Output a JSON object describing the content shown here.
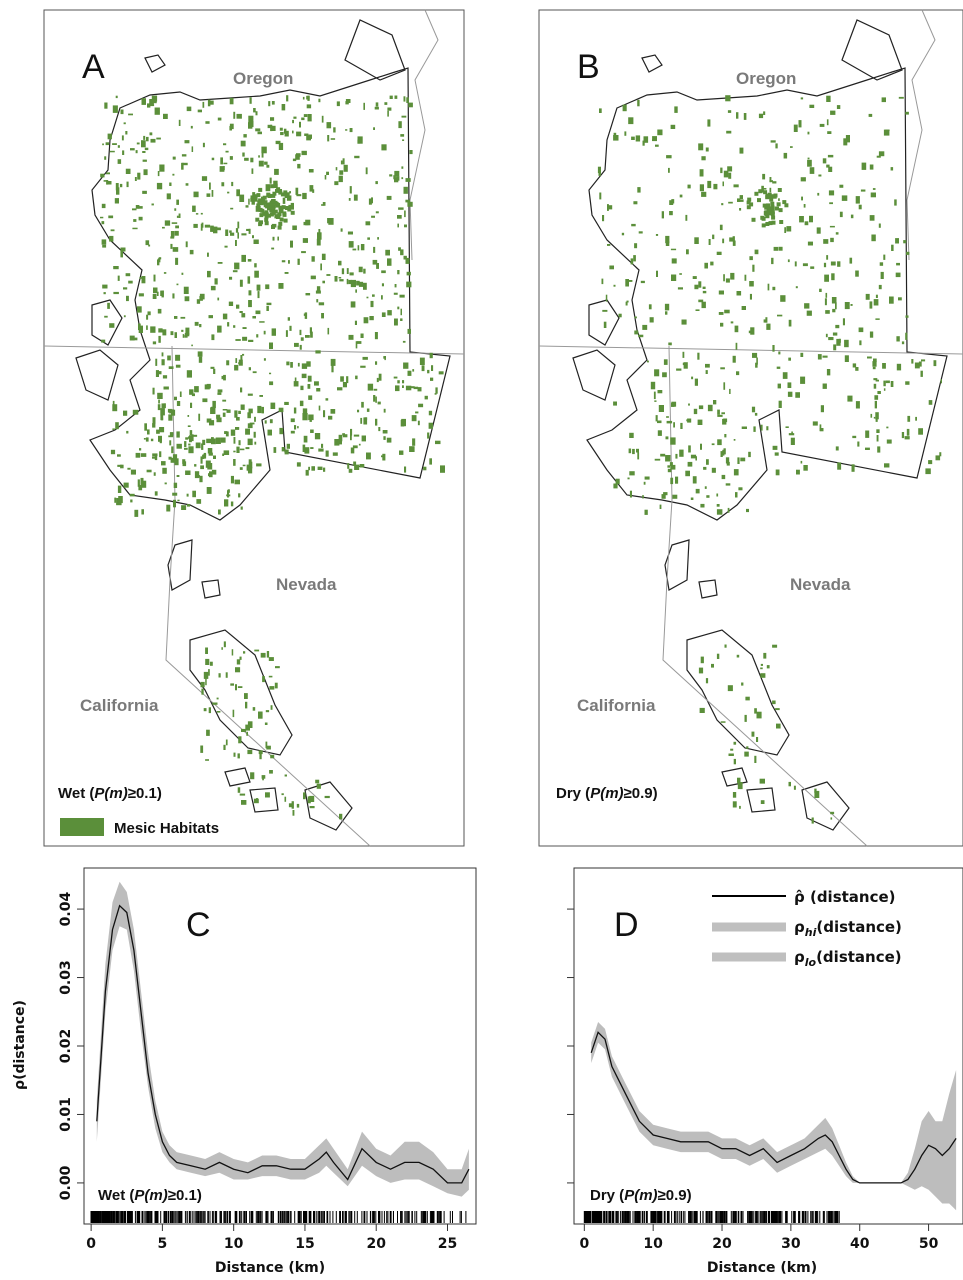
{
  "maps": [
    {
      "panel_label": "A",
      "state_labels": [
        "Oregon",
        "Nevada",
        "California"
      ],
      "caption": "Wet (P(m)≥0.1)",
      "caption_prefix": "Wet (",
      "caption_italic": "P(m)",
      "caption_suffix": "≥0.1)",
      "legend_label": "Mesic Habitats",
      "habitat_color": "#5b8f3a",
      "habitat_density": 1.0
    },
    {
      "panel_label": "B",
      "state_labels": [
        "Oregon",
        "Nevada",
        "California"
      ],
      "caption": "Dry (P(m)≥0.9)",
      "caption_prefix": "Dry (",
      "caption_italic": "P(m)",
      "caption_suffix": "≥0.9)",
      "habitat_color": "#5b8f3a",
      "habitat_density": 0.55
    }
  ],
  "chart_data": [
    {
      "type": "line",
      "panel_label": "C",
      "ylabel": "ρ(distance)",
      "xlabel": "Distance (km)",
      "xlim": [
        -0.5,
        27
      ],
      "ylim": [
        -0.006,
        0.046
      ],
      "xticks": [
        0,
        5,
        10,
        15,
        20,
        25
      ],
      "yticks": [
        "0.00",
        "0.01",
        "0.02",
        "0.03",
        "0.04"
      ],
      "ytick_values": [
        0,
        0.01,
        0.02,
        0.03,
        0.04
      ],
      "annotation": "Wet (P(m)≥0.1)",
      "annotation_prefix": "Wet (",
      "annotation_italic": "P(m)",
      "annotation_suffix": "≥0.1)",
      "series": [
        {
          "role": "estimate",
          "x": [
            0.4,
            1,
            1.5,
            2,
            2.5,
            3,
            3.5,
            4,
            4.5,
            5,
            5.5,
            6,
            7,
            8,
            9,
            10,
            11,
            12,
            13,
            14,
            15,
            16,
            16.5,
            17,
            18,
            19,
            20,
            21,
            22,
            23,
            24,
            25,
            26,
            26.5
          ],
          "y": [
            0.009,
            0.028,
            0.037,
            0.0405,
            0.0395,
            0.034,
            0.025,
            0.016,
            0.01,
            0.006,
            0.004,
            0.003,
            0.0025,
            0.002,
            0.003,
            0.002,
            0.0015,
            0.0025,
            0.0025,
            0.002,
            0.002,
            0.0035,
            0.0045,
            0.003,
            0.0005,
            0.005,
            0.003,
            0.002,
            0.003,
            0.003,
            0.002,
            0.0,
            0.0,
            0.002
          ],
          "lo": [
            0.006,
            0.025,
            0.034,
            0.0375,
            0.037,
            0.031,
            0.022,
            0.014,
            0.008,
            0.0045,
            0.003,
            0.002,
            0.0015,
            0.001,
            0.0015,
            0.0005,
            0.0005,
            0.001,
            0.001,
            0.0005,
            0.0005,
            0.0015,
            0.0025,
            0.0015,
            -0.0005,
            0.0025,
            0.001,
            0.0,
            0.0005,
            0.0005,
            -0.0005,
            -0.0015,
            -0.002,
            -0.001
          ],
          "hi": [
            0.012,
            0.032,
            0.041,
            0.044,
            0.0425,
            0.037,
            0.028,
            0.019,
            0.012,
            0.0075,
            0.0055,
            0.0045,
            0.004,
            0.0035,
            0.0045,
            0.0035,
            0.003,
            0.004,
            0.004,
            0.0035,
            0.0035,
            0.0055,
            0.0065,
            0.005,
            0.002,
            0.0075,
            0.005,
            0.004,
            0.006,
            0.006,
            0.0045,
            0.002,
            0.002,
            0.005
          ]
        }
      ]
    },
    {
      "type": "line",
      "panel_label": "D",
      "xlabel": "Distance (km)",
      "xlim": [
        -1.5,
        55
      ],
      "ylim": [
        -0.006,
        0.046
      ],
      "xticks": [
        0,
        10,
        20,
        30,
        40,
        50
      ],
      "ytick_values": [
        0,
        0.01,
        0.02,
        0.03,
        0.04
      ],
      "annotation": "Dry (P(m)≥0.9)",
      "annotation_prefix": "Dry (",
      "annotation_italic": "P(m)",
      "annotation_suffix": "≥0.9)",
      "legend": [
        "ρ̂ (distance)",
        "ρhi(distance)",
        "ρlo(distance)"
      ],
      "legend_base": "ρ",
      "legend_hi_sub": "hi",
      "legend_lo_sub": "lo",
      "legend_suffix": "(distance)",
      "legend_hat": "ρ̂ (distance)",
      "series": [
        {
          "role": "estimate",
          "x": [
            1,
            2,
            3,
            4,
            6,
            8,
            10,
            12,
            14,
            16,
            18,
            20,
            22,
            24,
            26,
            28,
            30,
            32,
            34,
            35,
            36,
            37,
            38,
            39,
            40,
            42,
            44,
            46,
            47,
            48,
            49,
            50,
            51,
            52,
            53,
            54
          ],
          "y": [
            0.019,
            0.022,
            0.021,
            0.017,
            0.013,
            0.009,
            0.007,
            0.0065,
            0.006,
            0.006,
            0.006,
            0.005,
            0.005,
            0.004,
            0.005,
            0.003,
            0.004,
            0.005,
            0.0065,
            0.007,
            0.006,
            0.004,
            0.002,
            0.0005,
            0.0,
            0.0,
            0.0,
            0.0,
            0.0005,
            0.002,
            0.004,
            0.0055,
            0.005,
            0.004,
            0.005,
            0.0065
          ],
          "lo": [
            0.0175,
            0.0205,
            0.0195,
            0.0155,
            0.0115,
            0.0075,
            0.0055,
            0.005,
            0.0045,
            0.0045,
            0.0045,
            0.0035,
            0.0035,
            0.0025,
            0.0035,
            0.0015,
            0.0025,
            0.0035,
            0.0045,
            0.005,
            0.004,
            0.0025,
            0.001,
            0.0,
            0.0,
            0.0,
            0.0,
            0.0,
            -0.0005,
            -0.001,
            -0.0005,
            -0.001,
            -0.002,
            -0.003,
            -0.003,
            -0.004
          ],
          "hi": [
            0.0205,
            0.0235,
            0.0225,
            0.0185,
            0.0145,
            0.0105,
            0.0085,
            0.008,
            0.0075,
            0.0075,
            0.0075,
            0.0065,
            0.0065,
            0.0055,
            0.0065,
            0.0045,
            0.0055,
            0.0065,
            0.0085,
            0.0095,
            0.008,
            0.0055,
            0.003,
            0.001,
            0.0,
            0.0,
            0.0,
            0.0,
            0.0015,
            0.005,
            0.009,
            0.0105,
            0.009,
            0.009,
            0.013,
            0.0165
          ]
        }
      ]
    }
  ]
}
